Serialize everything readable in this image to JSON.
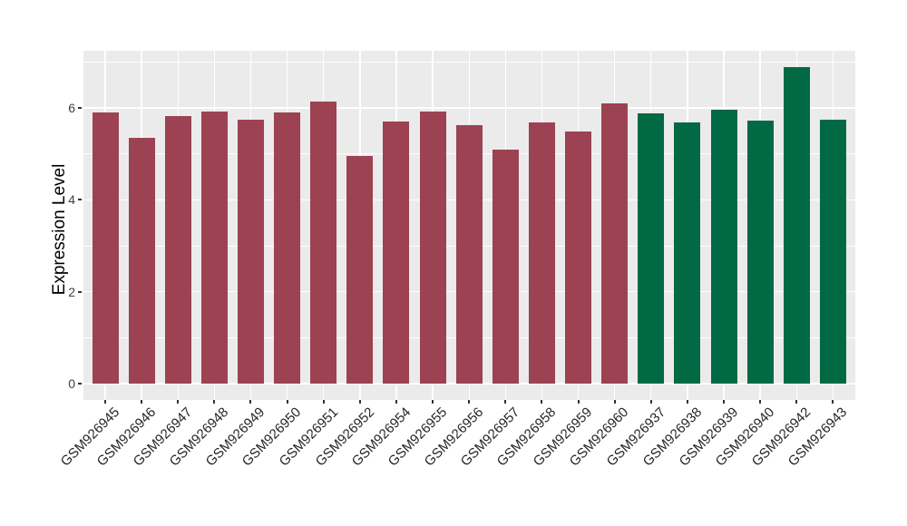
{
  "figure": {
    "background": "#ffffff",
    "panel_background": "#ebebeb",
    "gridline_color": "#ffffff",
    "tick_color": "#333333",
    "axis_text_color": "#404040"
  },
  "chart_data": {
    "type": "bar",
    "title": "",
    "xlabel": "",
    "ylabel": "Expression Level",
    "legend": false,
    "grid": true,
    "ylim": [
      -0.36,
      7.25
    ],
    "yticks": [
      0,
      2,
      4,
      6
    ],
    "yticks_minor": [
      1,
      3,
      5,
      7
    ],
    "group_colors": [
      "#9c4252",
      "#026945"
    ],
    "bars": [
      {
        "label": "GSM926945",
        "value": 5.9,
        "group": 0
      },
      {
        "label": "GSM926946",
        "value": 5.35,
        "group": 0
      },
      {
        "label": "GSM926947",
        "value": 5.83,
        "group": 0
      },
      {
        "label": "GSM926948",
        "value": 5.93,
        "group": 0
      },
      {
        "label": "GSM926949",
        "value": 5.74,
        "group": 0
      },
      {
        "label": "GSM926950",
        "value": 5.9,
        "group": 0
      },
      {
        "label": "GSM926951",
        "value": 6.14,
        "group": 0
      },
      {
        "label": "GSM926952",
        "value": 4.95,
        "group": 0
      },
      {
        "label": "GSM926954",
        "value": 5.7,
        "group": 0
      },
      {
        "label": "GSM926955",
        "value": 5.92,
        "group": 0
      },
      {
        "label": "GSM926956",
        "value": 5.63,
        "group": 0
      },
      {
        "label": "GSM926957",
        "value": 5.09,
        "group": 0
      },
      {
        "label": "GSM926958",
        "value": 5.69,
        "group": 0
      },
      {
        "label": "GSM926959",
        "value": 5.49,
        "group": 0
      },
      {
        "label": "GSM926960",
        "value": 6.1,
        "group": 0
      },
      {
        "label": "GSM926937",
        "value": 5.88,
        "group": 1
      },
      {
        "label": "GSM926938",
        "value": 5.68,
        "group": 1
      },
      {
        "label": "GSM926939",
        "value": 5.97,
        "group": 1
      },
      {
        "label": "GSM926940",
        "value": 5.73,
        "group": 1
      },
      {
        "label": "GSM926942",
        "value": 6.9,
        "group": 1
      },
      {
        "label": "GSM926943",
        "value": 5.74,
        "group": 1
      }
    ]
  }
}
